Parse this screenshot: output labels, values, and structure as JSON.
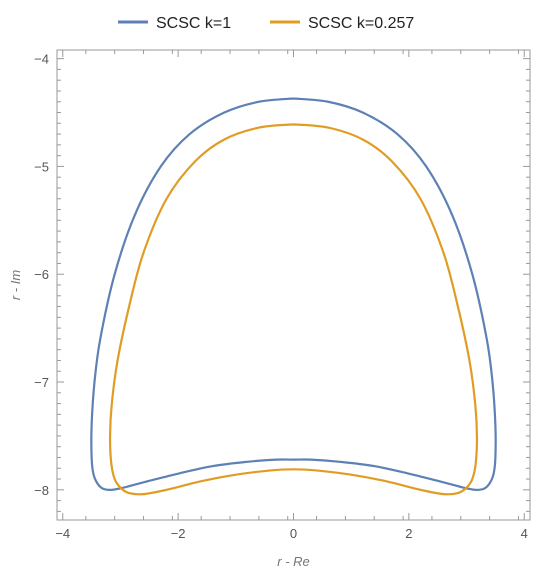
{
  "chart_data": {
    "type": "line",
    "title": "",
    "xlabel": "r - Re",
    "ylabel": "r - Im",
    "xlim": [
      -4.1,
      4.1
    ],
    "ylim": [
      -8.28,
      -3.92
    ],
    "xticks": [
      -4,
      -2,
      0,
      2,
      4
    ],
    "yticks": [
      -8,
      -7,
      -6,
      -5,
      -4
    ],
    "xtick_labels": [
      "−4",
      "−2",
      "0",
      "2",
      "4"
    ],
    "ytick_labels": [
      "−8",
      "−7",
      "−6",
      "−5",
      "−4"
    ],
    "grid": false,
    "legend_position": "top",
    "series": [
      {
        "name": "SCSC k=1",
        "color": "#5E81B5",
        "x": [
          0,
          0.6,
          1.2,
          1.8,
          2.3,
          2.75,
          3.1,
          3.35,
          3.45,
          3.5,
          3.5,
          3.47,
          3.4,
          3.3,
          3.15,
          2.95,
          2.6,
          2.0,
          1.4,
          0.8,
          0.3,
          0,
          -0.3,
          -0.8,
          -1.4,
          -2.0,
          -2.6,
          -2.95,
          -3.15,
          -3.3,
          -3.4,
          -3.47,
          -3.5,
          -3.5,
          -3.45,
          -3.35,
          -3.1,
          -2.75,
          -2.3,
          -1.8,
          -1.2,
          -0.6,
          0
        ],
        "y": [
          -4.37,
          -4.4,
          -4.5,
          -4.7,
          -5.0,
          -5.45,
          -6.0,
          -6.6,
          -7.0,
          -7.4,
          -7.7,
          -7.85,
          -7.94,
          -7.99,
          -8.0,
          -7.98,
          -7.93,
          -7.85,
          -7.78,
          -7.74,
          -7.72,
          -7.72,
          -7.72,
          -7.74,
          -7.78,
          -7.85,
          -7.93,
          -7.98,
          -8.0,
          -7.99,
          -7.94,
          -7.85,
          -7.7,
          -7.4,
          -7.0,
          -6.6,
          -6.0,
          -5.45,
          -5.0,
          -4.7,
          -4.5,
          -4.4,
          -4.37
        ]
      },
      {
        "name": "SCSC k=0.257",
        "color": "#E19C24",
        "x": [
          0,
          0.6,
          1.2,
          1.7,
          2.2,
          2.6,
          2.85,
          3.05,
          3.15,
          3.18,
          3.16,
          3.1,
          3.0,
          2.85,
          2.6,
          2.2,
          1.6,
          1.0,
          0.4,
          0,
          -0.4,
          -1.0,
          -1.6,
          -2.2,
          -2.6,
          -2.85,
          -3.0,
          -3.1,
          -3.16,
          -3.18,
          -3.15,
          -3.05,
          -2.85,
          -2.6,
          -2.2,
          -1.7,
          -1.2,
          -0.6,
          0
        ],
        "y": [
          -4.61,
          -4.64,
          -4.75,
          -4.95,
          -5.3,
          -5.8,
          -6.3,
          -6.8,
          -7.2,
          -7.5,
          -7.75,
          -7.9,
          -7.98,
          -8.03,
          -8.04,
          -8.0,
          -7.92,
          -7.86,
          -7.82,
          -7.81,
          -7.82,
          -7.86,
          -7.92,
          -8.0,
          -8.04,
          -8.03,
          -7.98,
          -7.9,
          -7.75,
          -7.5,
          -7.2,
          -6.8,
          -6.3,
          -5.8,
          -5.3,
          -4.95,
          -4.75,
          -4.64,
          -4.61
        ]
      }
    ]
  }
}
